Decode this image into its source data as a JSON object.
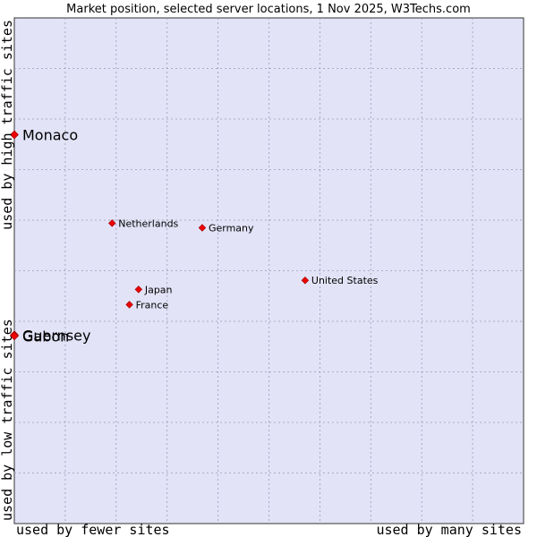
{
  "chart_data": {
    "type": "scatter",
    "title": "Market position, selected server locations, 1 Nov 2025, W3Techs.com",
    "xlabel_left": "used by fewer sites",
    "xlabel_right": "used by many sites",
    "ylabel_bottom": "used by low traffic sites",
    "ylabel_top": "used by high traffic sites",
    "xlim": [
      0,
      100
    ],
    "ylim": [
      0,
      100
    ],
    "grid": true,
    "colors": {
      "plot_bg": "#e3e3f8",
      "grid": "#9a9ab0",
      "point": "#ee0000",
      "point_stroke": "#990000"
    },
    "points": [
      {
        "name": "Monaco",
        "x": 0.0,
        "y": 76.9,
        "label_size": "large"
      },
      {
        "name": "Netherlands",
        "x": 19.2,
        "y": 59.4,
        "label_size": "small"
      },
      {
        "name": "Germany",
        "x": 36.9,
        "y": 58.5,
        "label_size": "small"
      },
      {
        "name": "United States",
        "x": 57.1,
        "y": 48.1,
        "label_size": "small"
      },
      {
        "name": "Japan",
        "x": 24.4,
        "y": 46.3,
        "label_size": "small"
      },
      {
        "name": "France",
        "x": 22.6,
        "y": 43.3,
        "label_size": "small"
      },
      {
        "name": "Guernsey",
        "x": 0.0,
        "y": 37.3,
        "label_size": "large"
      },
      {
        "name": "Gabon",
        "x": 0.0,
        "y": 37.1,
        "label_size": "large"
      }
    ]
  }
}
